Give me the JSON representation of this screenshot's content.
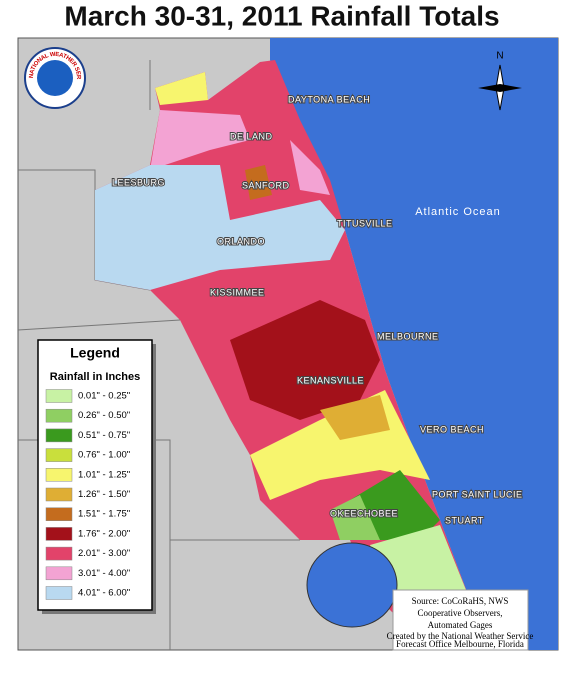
{
  "title": "March 30-31, 2011 Rainfall Totals",
  "logo_text": "NATIONAL WEATHER SERVICE",
  "compass": "N",
  "ocean_label": "Atlantic Ocean",
  "cities": [
    "DAYTONA BEACH",
    "DE LAND",
    "LEESBURG",
    "SANFORD",
    "TITUSVILLE",
    "ORLANDO",
    "KISSIMMEE",
    "MELBOURNE",
    "KENANSVILLE",
    "VERO BEACH",
    "PORT SAINT LUCIE",
    "OKEECHOBEE",
    "STUART"
  ],
  "legend": {
    "title": "Legend",
    "subtitle": "Rainfall in Inches",
    "items": [
      {
        "label": "0.01\" - 0.25\"",
        "color": "#c8f2a4"
      },
      {
        "label": "0.26\" - 0.50\"",
        "color": "#8fcf62"
      },
      {
        "label": "0.51\" - 0.75\"",
        "color": "#3a9a1e"
      },
      {
        "label": "0.76\" - 1.00\"",
        "color": "#c9df3c"
      },
      {
        "label": "1.01\" - 1.25\"",
        "color": "#f7f56e"
      },
      {
        "label": "1.26\" - 1.50\"",
        "color": "#dfae34"
      },
      {
        "label": "1.51\" - 1.75\"",
        "color": "#c46c1e"
      },
      {
        "label": "1.76\" - 2.00\"",
        "color": "#a3111a"
      },
      {
        "label": "2.01\" - 3.00\"",
        "color": "#e2436a"
      },
      {
        "label": "3.01\" - 4.00\"",
        "color": "#f3a3d3"
      },
      {
        "label": "4.01\" - 6.00\"",
        "color": "#b9d9f0"
      }
    ]
  },
  "source": {
    "lines": [
      "Source: CoCoRaHS, NWS",
      "Cooperative Observers,",
      "Automated Gages"
    ],
    "credit": [
      "Created by the National Weather Service",
      "Forecast Office Melbourne, Florida"
    ]
  }
}
